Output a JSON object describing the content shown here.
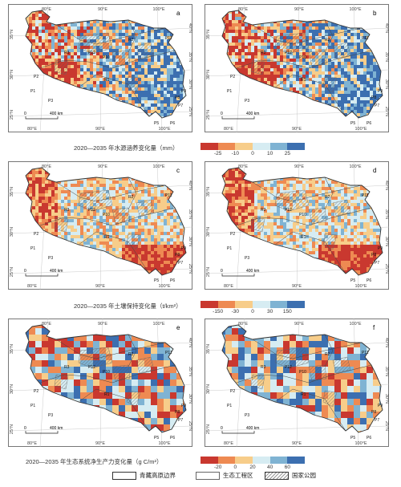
{
  "panels": [
    {
      "id": "a",
      "letter": "a",
      "row": 0,
      "col": 0
    },
    {
      "id": "b",
      "letter": "b",
      "row": 0,
      "col": 1
    },
    {
      "id": "c",
      "letter": "c",
      "row": 1,
      "col": 0
    },
    {
      "id": "d",
      "letter": "d",
      "row": 1,
      "col": 1
    },
    {
      "id": "e",
      "letter": "e",
      "row": 2,
      "col": 0
    },
    {
      "id": "f",
      "letter": "f",
      "row": 2,
      "col": 1
    }
  ],
  "graticule": {
    "top_lon": [
      "80°E",
      "90°E",
      "100°E"
    ],
    "bottom_lon": [
      "80°E",
      "90°E",
      "100°E"
    ],
    "left_lat": [
      "35°N",
      "30°N",
      "25°N"
    ],
    "right_lat": [
      "40°N",
      "35°N",
      "30°N",
      "25°N"
    ]
  },
  "scalebar_label": "400 km",
  "region_labels": [
    "P1",
    "P2",
    "P3",
    "P5",
    "P6",
    "P7",
    "P8",
    "P9",
    "P10",
    "P11",
    "P12",
    "R1",
    "R2",
    "R3"
  ],
  "rows": [
    {
      "caption": "2020—2035 年水源涵养变化量（mm）",
      "colors": [
        "#c9382f",
        "#ee8a52",
        "#f7cd8a",
        "#d6ecf2",
        "#7fb3d3",
        "#3c6fb0"
      ],
      "ticks": [
        "-25",
        "-10",
        "0",
        "10",
        "25"
      ]
    },
    {
      "caption": "2020—2035 年土壤保持变化量（t/km²）",
      "colors": [
        "#c9382f",
        "#ee8a52",
        "#f7cd8a",
        "#d6ecf2",
        "#7fb3d3",
        "#3c6fb0"
      ],
      "ticks": [
        "-150",
        "-30",
        "0",
        "30",
        "150"
      ]
    },
    {
      "caption": "2020—2035 年生态系统净生产力变化量（g C/m²）",
      "colors": [
        "#c9382f",
        "#ee8a52",
        "#f7cd8a",
        "#d6ecf2",
        "#7fb3d3",
        "#3c6fb0"
      ],
      "ticks": [
        "-20",
        "0",
        "20",
        "40",
        "60"
      ]
    }
  ],
  "legend": {
    "boundary": "青藏高原边界",
    "project": "生态工程区",
    "park": "国家公园"
  }
}
